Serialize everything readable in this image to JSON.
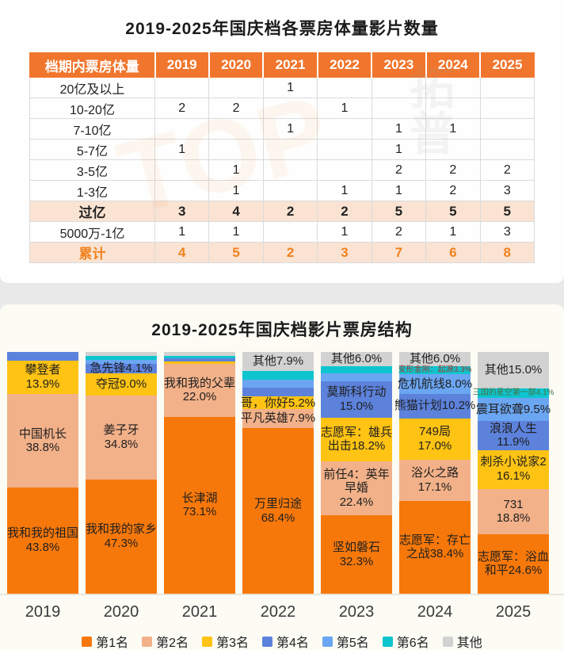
{
  "colors": {
    "rank1": "#F7780A",
    "rank2": "#F2B189",
    "rank3": "#FFC313",
    "rank4": "#5C82DC",
    "rank5": "#6BA6F2",
    "rank6": "#0EC5CF",
    "other": "#D2D2D2",
    "table_header_bg": "#F1762D",
    "table_highlight_bg": "#FAE3D2",
    "accent_orange": "#F0811D"
  },
  "watermark": {
    "primary": "TOP",
    "secondary": "拓普"
  },
  "table_section": {
    "title": "2019-2025年国庆档各票房体量影片数量",
    "header": [
      "档期内票房体量",
      "2019",
      "2020",
      "2021",
      "2022",
      "2023",
      "2024",
      "2025"
    ],
    "rows": [
      {
        "label": "20亿及以上",
        "values": [
          "",
          "",
          "1",
          "",
          "",
          "",
          ""
        ],
        "variant": "default"
      },
      {
        "label": "10-20亿",
        "values": [
          "2",
          "2",
          "",
          "1",
          "",
          "",
          ""
        ],
        "variant": "default"
      },
      {
        "label": "7-10亿",
        "values": [
          "",
          "",
          "1",
          "",
          "1",
          "1",
          ""
        ],
        "variant": "default"
      },
      {
        "label": "5-7亿",
        "values": [
          "1",
          "",
          "",
          "",
          "1",
          "",
          ""
        ],
        "variant": "default"
      },
      {
        "label": "3-5亿",
        "values": [
          "",
          "1",
          "",
          "",
          "2",
          "2",
          "2"
        ],
        "variant": "default"
      },
      {
        "label": "1-3亿",
        "values": [
          "",
          "1",
          "",
          "1",
          "1",
          "2",
          "3"
        ],
        "variant": "default"
      },
      {
        "label": "过亿",
        "values": [
          "3",
          "4",
          "2",
          "2",
          "5",
          "5",
          "5"
        ],
        "variant": "subtotal"
      },
      {
        "label": "5000万-1亿",
        "values": [
          "1",
          "1",
          "",
          "1",
          "2",
          "1",
          "3"
        ],
        "variant": "default"
      },
      {
        "label": "累计",
        "values": [
          "4",
          "5",
          "2",
          "3",
          "7",
          "6",
          "8"
        ],
        "variant": "total"
      }
    ]
  },
  "chart_section": {
    "title": "2019-2025年国庆档影片票房结构"
  },
  "chart_data": {
    "type": "bar",
    "stacked": true,
    "value_unit": "percent",
    "ylim": [
      0,
      100
    ],
    "segment_order": "top-to-bottom",
    "categories": [
      "2019",
      "2020",
      "2021",
      "2022",
      "2023",
      "2024",
      "2025"
    ],
    "legend": [
      {
        "label": "第1名",
        "color": "#F7780A"
      },
      {
        "label": "第2名",
        "color": "#F2B189"
      },
      {
        "label": "第3名",
        "color": "#FFC313"
      },
      {
        "label": "第4名",
        "color": "#5C82DC"
      },
      {
        "label": "第5名",
        "color": "#6BA6F2"
      },
      {
        "label": "第6名",
        "color": "#0EC5CF"
      },
      {
        "label": "其他",
        "color": "#D2D2D2"
      }
    ],
    "bars": [
      {
        "year": "2019",
        "segments": [
          {
            "rank": "第4名",
            "value": 3.5,
            "label_lines": []
          },
          {
            "rank": "第3名",
            "value": 13.9,
            "label_lines": [
              "攀登者",
              "13.9%"
            ]
          },
          {
            "rank": "第2名",
            "value": 38.8,
            "label_lines": [
              "中国机长",
              "38.8%"
            ]
          },
          {
            "rank": "第1名",
            "value": 43.8,
            "label_lines": [
              "我和我的祖国",
              "43.8%"
            ]
          }
        ]
      },
      {
        "year": "2020",
        "segments": [
          {
            "rank": "其他",
            "value": 1.6,
            "label_lines": []
          },
          {
            "rank": "第6名",
            "value": 1.6,
            "label_lines": []
          },
          {
            "rank": "第5名",
            "value": 1.6,
            "label_lines": []
          },
          {
            "rank": "第4名",
            "value": 4.1,
            "label_lines": [
              "急先锋4.1%"
            ]
          },
          {
            "rank": "第3名",
            "value": 9.0,
            "label_lines": [
              "夺冠9.0%"
            ]
          },
          {
            "rank": "第2名",
            "value": 34.8,
            "label_lines": [
              "姜子牙",
              "34.8%"
            ]
          },
          {
            "rank": "第1名",
            "value": 47.3,
            "label_lines": [
              "我和我的家乡",
              "47.3%"
            ]
          }
        ]
      },
      {
        "year": "2021",
        "segments": [
          {
            "rank": "其他",
            "value": 1.5,
            "label_lines": []
          },
          {
            "rank": "第6名",
            "value": 1.2,
            "label_lines": []
          },
          {
            "rank": "第4名",
            "value": 1.2,
            "label_lines": []
          },
          {
            "rank": "第3名",
            "value": 1.0,
            "label_lines": []
          },
          {
            "rank": "第2名",
            "value": 22.0,
            "label_lines": [
              "我和我的父辈",
              "22.0%"
            ]
          },
          {
            "rank": "第1名",
            "value": 73.1,
            "label_lines": [
              "长津湖",
              "73.1%"
            ]
          }
        ]
      },
      {
        "year": "2022",
        "segments": [
          {
            "rank": "其他",
            "value": 7.9,
            "label_lines": [
              "其他7.9%"
            ]
          },
          {
            "rank": "第6名",
            "value": 3.5,
            "label_lines": []
          },
          {
            "rank": "第5名",
            "value": 3.5,
            "label_lines": []
          },
          {
            "rank": "第4名",
            "value": 3.6,
            "label_lines": []
          },
          {
            "rank": "第3名",
            "value": 5.2,
            "label_lines": [
              "哥，你好5.2%"
            ]
          },
          {
            "rank": "第2名",
            "value": 7.9,
            "label_lines": [
              "平凡英雄7.9%"
            ]
          },
          {
            "rank": "第1名",
            "value": 68.4,
            "label_lines": [
              "万里归途",
              "68.4%"
            ]
          }
        ]
      },
      {
        "year": "2023",
        "segments": [
          {
            "rank": "其他",
            "value": 6.0,
            "label_lines": [
              "其他6.0%"
            ]
          },
          {
            "rank": "第6名",
            "value": 2.8,
            "label_lines": []
          },
          {
            "rank": "第5名",
            "value": 3.3,
            "label_lines": []
          },
          {
            "rank": "第4名",
            "value": 15.0,
            "label_lines": [
              "莫斯科行动",
              "15.0%"
            ]
          },
          {
            "rank": "第3名",
            "value": 18.2,
            "label_lines": [
              "志愿军：雄兵",
              "出击18.2%"
            ]
          },
          {
            "rank": "第2名",
            "value": 22.4,
            "label_lines": [
              "前任4：英年",
              "早婚",
              "22.4%"
            ]
          },
          {
            "rank": "第1名",
            "value": 32.3,
            "label_lines": [
              "坚如磐石",
              "32.3%"
            ]
          }
        ]
      },
      {
        "year": "2024",
        "segments": [
          {
            "rank": "其他",
            "value": 6.0,
            "label_lines": [
              "其他6.0%"
            ]
          },
          {
            "rank": "第6名",
            "value": 3.3,
            "label_lines": [
              "变形金刚：起源3.3%"
            ],
            "label_color": "#9B3A30",
            "label_size": 10
          },
          {
            "rank": "第5名",
            "value": 8.0,
            "label_lines": [
              "危机航线8.0%"
            ]
          },
          {
            "rank": "第4名",
            "value": 10.2,
            "label_lines": [
              "熊猫计划10.2%"
            ]
          },
          {
            "rank": "第3名",
            "value": 17.0,
            "label_lines": [
              "749局",
              "17.0%"
            ]
          },
          {
            "rank": "第2名",
            "value": 17.1,
            "label_lines": [
              "浴火之路",
              "17.1%"
            ]
          },
          {
            "rank": "第1名",
            "value": 38.4,
            "label_lines": [
              "志愿军：存亡",
              "之战38.4%"
            ]
          }
        ]
      },
      {
        "year": "2025",
        "segments": [
          {
            "rank": "其他",
            "value": 15.0,
            "label_lines": [
              "其他15.0%"
            ]
          },
          {
            "rank": "第6名",
            "value": 4.1,
            "label_lines": [
              "三国的星空第一部4.1%"
            ],
            "label_color": "#46713F",
            "label_size": 10
          },
          {
            "rank": "第5名",
            "value": 9.5,
            "label_lines": [
              "震耳欲聋9.5%"
            ]
          },
          {
            "rank": "第4名",
            "value": 11.9,
            "label_lines": [
              "浪浪人生",
              "11.9%"
            ]
          },
          {
            "rank": "第3名",
            "value": 16.1,
            "label_lines": [
              "刺杀小说家2",
              "16.1%"
            ]
          },
          {
            "rank": "第2名",
            "value": 18.8,
            "label_lines": [
              "731",
              "18.8%"
            ]
          },
          {
            "rank": "第1名",
            "value": 24.6,
            "label_lines": [
              "志愿军：浴血",
              "和平24.6%"
            ]
          }
        ]
      }
    ]
  }
}
